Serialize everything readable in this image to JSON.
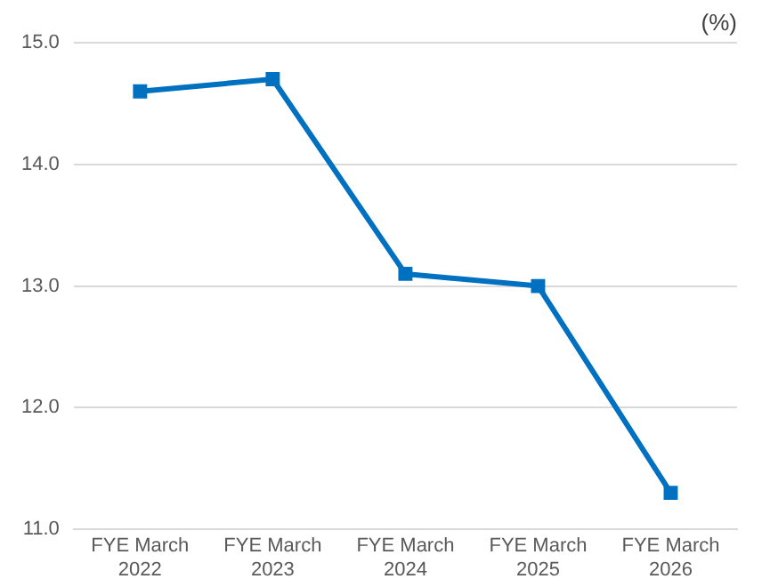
{
  "chart_data": {
    "type": "line",
    "ylabel": "(%)",
    "categories": [
      "FYE March 2022",
      "FYE March 2023",
      "FYE March 2024",
      "FYE March 2025",
      "FYE March 2026"
    ],
    "series": [
      {
        "color": "#0070c0",
        "values": [
          14.6,
          14.7,
          13.1,
          13.0,
          11.3
        ]
      }
    ],
    "ylim": [
      11,
      15
    ],
    "yticks": [
      {
        "value": 11,
        "label": "11.0"
      },
      {
        "value": 12,
        "label": "12.0"
      },
      {
        "value": 13,
        "label": "13.0"
      },
      {
        "value": 14,
        "label": "14.0"
      },
      {
        "value": 15,
        "label": "15.0"
      }
    ],
    "grid": "y",
    "legend": false,
    "marker": "square",
    "line_style": "solid"
  }
}
